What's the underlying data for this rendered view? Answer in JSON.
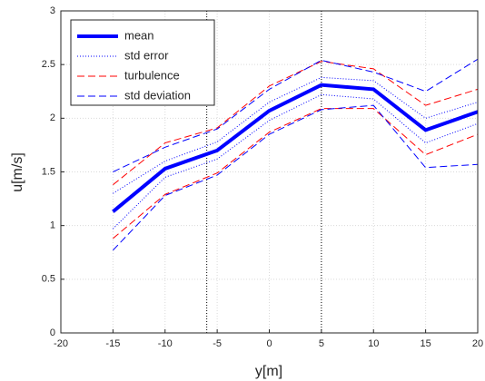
{
  "chart_data": {
    "type": "line",
    "xlabel": "y[m]",
    "ylabel": "u[m/s]",
    "x": [
      -15,
      -10,
      -5,
      0,
      5,
      10,
      15,
      20
    ],
    "series": [
      {
        "name": "mean",
        "color": "#0000ff",
        "style": "solid",
        "width": 4,
        "values": [
          1.13,
          1.53,
          1.7,
          2.07,
          2.31,
          2.27,
          1.89,
          2.06
        ]
      },
      {
        "name": "std error",
        "color": "#0000ff",
        "style": "dotted",
        "width": 1,
        "upper": [
          1.3,
          1.6,
          1.78,
          2.15,
          2.38,
          2.35,
          2.0,
          2.15
        ],
        "lower": [
          0.97,
          1.45,
          1.62,
          1.98,
          2.22,
          2.18,
          1.77,
          1.95
        ]
      },
      {
        "name": "turbulence",
        "color": "#ff0000",
        "style": "dashed",
        "width": 1,
        "upper": [
          1.38,
          1.77,
          1.91,
          2.3,
          2.53,
          2.46,
          2.12,
          2.27
        ],
        "lower": [
          0.88,
          1.29,
          1.49,
          1.87,
          2.09,
          2.09,
          1.66,
          1.85
        ]
      },
      {
        "name": "std deviation",
        "color": "#0000ff",
        "style": "dashed",
        "width": 1,
        "upper": [
          1.5,
          1.73,
          1.9,
          2.27,
          2.54,
          2.43,
          2.25,
          2.55
        ],
        "lower": [
          0.77,
          1.28,
          1.47,
          1.85,
          2.08,
          2.12,
          1.54,
          1.57
        ]
      }
    ],
    "vlines": [
      -6,
      5
    ],
    "xlim": [
      -20,
      20
    ],
    "xticks": [
      -20,
      -15,
      -10,
      -5,
      0,
      5,
      10,
      15,
      20
    ],
    "ylim": [
      0,
      3
    ],
    "yticks": [
      0,
      0.5,
      1,
      1.5,
      2,
      2.5,
      3
    ],
    "grid": true,
    "legend": "upper-left"
  }
}
